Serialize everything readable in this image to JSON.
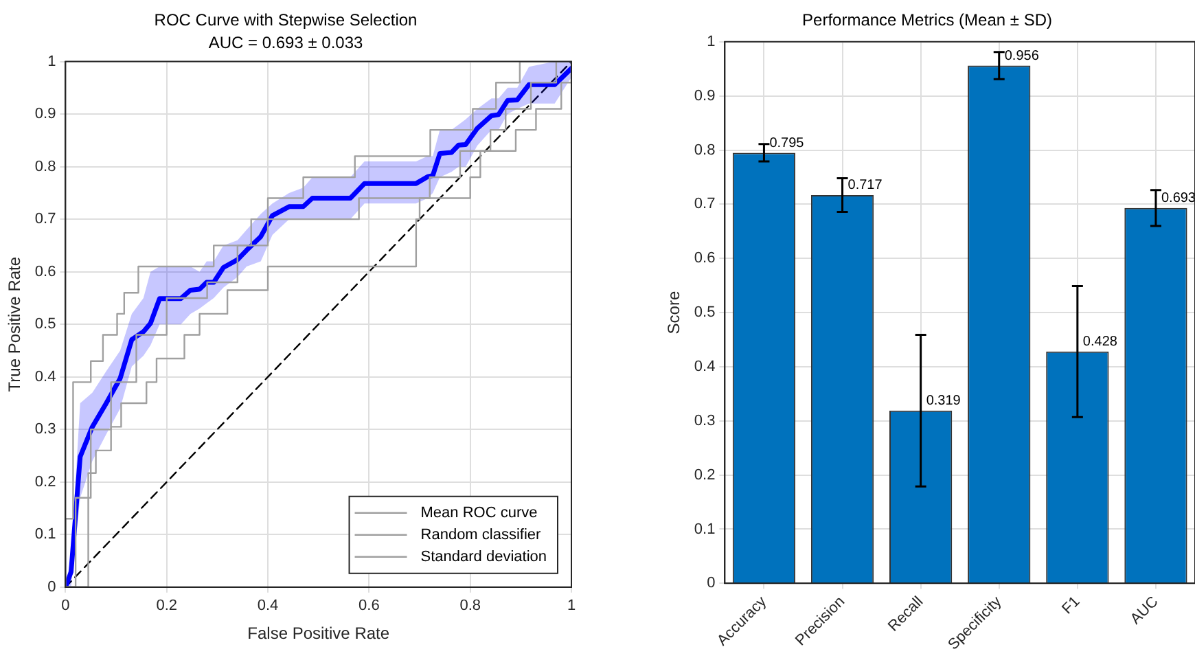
{
  "chart_data": [
    {
      "type": "line",
      "title": "ROC Curve with Stepwise Selection",
      "subtitle": "AUC = 0.693 ± 0.033",
      "xlabel": "False Positive Rate",
      "ylabel": "True Positive Rate",
      "xlim": [
        0,
        1
      ],
      "xticks": [
        0,
        0.2,
        0.4,
        0.6,
        0.8,
        1
      ],
      "ylim": [
        0,
        1
      ],
      "yticks": [
        0,
        0.1,
        0.2,
        0.3,
        0.4,
        0.5,
        0.6,
        0.7,
        0.8,
        0.9,
        1
      ],
      "grid": true,
      "legend": "bottom right",
      "marker": "none",
      "series": [
        {
          "name": "Mean ROC curve",
          "type": "step",
          "color": "#a0a0a0",
          "x": [
            0,
            0,
            0.015,
            0.05,
            0.074,
            0.102,
            0.116,
            0.144,
            0.293,
            0.367,
            0.4,
            0.47,
            0.572,
            0.721,
            0.805,
            0.851,
            0.898,
            1
          ],
          "values": [
            0,
            0.13,
            0.39,
            0.43,
            0.48,
            0.52,
            0.56,
            0.61,
            0.65,
            0.7,
            0.74,
            0.78,
            0.82,
            0.87,
            0.91,
            0.96,
            1,
            1
          ]
        },
        {
          "name": "Random classifier",
          "type": "step",
          "color": "#a0a0a0",
          "x": [
            0,
            0.03,
            0.045,
            0.06,
            0.09,
            0.11,
            0.16,
            0.18,
            0.235,
            0.265,
            0.32,
            0.4,
            0.693,
            0.7,
            0.8,
            0.82,
            0.89,
            0.93,
            0.98,
            1
          ],
          "values": [
            0,
            0,
            0.217,
            0.26,
            0.305,
            0.35,
            0.39,
            0.435,
            0.48,
            0.52,
            0.565,
            0.61,
            0.7,
            0.74,
            0.78,
            0.83,
            0.87,
            0.91,
            0.96,
            1
          ]
        },
        {
          "name": "Standard deviation",
          "type": "step",
          "color": "#a0a0a0",
          "x": [
            0,
            0.02,
            0.05,
            0.09,
            0.14,
            0.2,
            0.28,
            0.34,
            0.4,
            0.58,
            0.72,
            0.78,
            0.84,
            0.87,
            0.92,
            0.97,
            1
          ],
          "values": [
            0,
            0.17,
            0.3,
            0.39,
            0.48,
            0.55,
            0.58,
            0.65,
            0.7,
            0.74,
            0.78,
            0.83,
            0.87,
            0.91,
            0.96,
            1,
            1
          ]
        },
        {
          "color": "#0000ff",
          "x": [
            0,
            0.011,
            0.029,
            0.053,
            0.08,
            0.108,
            0.131,
            0.154,
            0.168,
            0.186,
            0.228,
            0.247,
            0.265,
            0.279,
            0.293,
            0.312,
            0.34,
            0.358,
            0.386,
            0.409,
            0.442,
            0.47,
            0.488,
            0.563,
            0.591,
            0.693,
            0.716,
            0.726,
            0.74,
            0.763,
            0.777,
            0.791,
            0.814,
            0.842,
            0.856,
            0.874,
            0.893,
            0.916,
            0.967,
            1
          ],
          "values": [
            0,
            0.029,
            0.248,
            0.305,
            0.349,
            0.397,
            0.471,
            0.486,
            0.502,
            0.549,
            0.549,
            0.565,
            0.567,
            0.58,
            0.58,
            0.608,
            0.623,
            0.641,
            0.667,
            0.707,
            0.724,
            0.724,
            0.74,
            0.74,
            0.768,
            0.768,
            0.781,
            0.783,
            0.825,
            0.827,
            0.841,
            0.842,
            0.873,
            0.897,
            0.899,
            0.926,
            0.927,
            0.956,
            0.956,
            0.987
          ],
          "lower": [
            0,
            0,
            0.17,
            0.24,
            0.29,
            0.34,
            0.42,
            0.44,
            0.46,
            0.5,
            0.5,
            0.52,
            0.53,
            0.54,
            0.55,
            0.57,
            0.59,
            0.61,
            0.62,
            0.67,
            0.7,
            0.7,
            0.7,
            0.7,
            0.73,
            0.73,
            0.74,
            0.75,
            0.78,
            0.79,
            0.8,
            0.8,
            0.84,
            0.87,
            0.87,
            0.9,
            0.91,
            0.92,
            0.92,
            0.97
          ],
          "upper": [
            0,
            0.06,
            0.35,
            0.37,
            0.41,
            0.45,
            0.52,
            0.55,
            0.6,
            0.61,
            0.61,
            0.61,
            0.6,
            0.62,
            0.62,
            0.65,
            0.66,
            0.68,
            0.71,
            0.73,
            0.75,
            0.76,
            0.78,
            0.78,
            0.81,
            0.81,
            0.82,
            0.82,
            0.87,
            0.87,
            0.88,
            0.89,
            0.91,
            0.93,
            0.93,
            0.95,
            0.95,
            0.99,
            1,
            1
          ]
        },
        {
          "color": "#000000",
          "line_style": "dashed",
          "x": [
            0,
            1
          ],
          "values": [
            0,
            1
          ]
        }
      ]
    },
    {
      "type": "bar",
      "title": "Performance Metrics (Mean ± SD)",
      "ylabel": "Score",
      "categories": [
        "Accuracy",
        "Precision",
        "Recall",
        "Specificity",
        "F1",
        "AUC"
      ],
      "values": [
        0.795,
        0.717,
        0.319,
        0.956,
        0.428,
        0.693
      ],
      "errors": [
        0.016,
        0.031,
        0.14,
        0.025,
        0.121,
        0.033
      ],
      "color": "#0072bd",
      "ylim": [
        0,
        1
      ],
      "yticks": [
        0,
        0.1,
        0.2,
        0.3,
        0.4,
        0.5,
        0.6,
        0.7,
        0.8,
        0.9,
        1
      ],
      "grid": true,
      "data_labels": true
    }
  ]
}
